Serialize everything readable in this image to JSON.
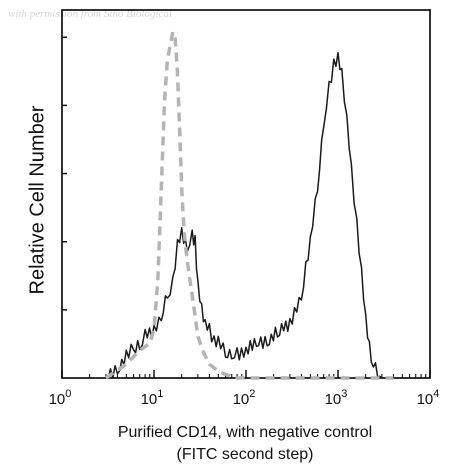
{
  "watermark": "with permission from Sino Biological",
  "chart_data": {
    "type": "line",
    "xscale": "log",
    "xlim": [
      1,
      10000
    ],
    "ylim": [
      0,
      100
    ],
    "x_ticks": [
      {
        "value": 1,
        "label": "10",
        "exp": "0"
      },
      {
        "value": 10,
        "label": "10",
        "exp": "1"
      },
      {
        "value": 100,
        "label": "10",
        "exp": "2"
      },
      {
        "value": 1000,
        "label": "10",
        "exp": "3"
      },
      {
        "value": 10000,
        "label": "10",
        "exp": "4"
      }
    ],
    "xlabel_line1": "Purified CD14, with negative control",
    "xlabel_line2": "(FITC second step)",
    "ylabel": "Relative Cell Number",
    "series": [
      {
        "style": "solid",
        "color": "#1a1a1a",
        "x": [
          3,
          4,
          5,
          6,
          7,
          8,
          10,
          12,
          14,
          16,
          18,
          20,
          23,
          26,
          28,
          30,
          33,
          36,
          40,
          45,
          50,
          60,
          70,
          80,
          100,
          130,
          170,
          220,
          300,
          400,
          500,
          600,
          700,
          800,
          900,
          1000,
          1100,
          1250,
          1400,
          1600,
          1800,
          2000,
          2300,
          2700,
          3000
        ],
        "y": [
          0,
          3,
          6,
          9,
          10,
          12,
          14,
          18,
          24,
          28,
          38,
          42,
          38,
          41,
          40,
          26,
          20,
          16,
          14,
          11,
          10,
          8,
          7,
          7,
          8,
          10,
          11,
          13,
          16,
          24,
          39,
          56,
          74,
          84,
          91,
          92,
          88,
          75,
          60,
          45,
          30,
          17,
          6,
          1,
          0
        ]
      },
      {
        "style": "dashed",
        "color": "#b4b4b4",
        "x": [
          3,
          5,
          7,
          9,
          10,
          11,
          12,
          13,
          14,
          15,
          16,
          17,
          18,
          19,
          20,
          21,
          22,
          24,
          26,
          28,
          30,
          35,
          40,
          50,
          60,
          80,
          100,
          200,
          1000,
          3000,
          4000
        ],
        "y": [
          0,
          4,
          8,
          10,
          14,
          28,
          55,
          80,
          92,
          96,
          100,
          98,
          88,
          72,
          55,
          45,
          38,
          30,
          24,
          18,
          12,
          7,
          4,
          2,
          1,
          0,
          0,
          0,
          0,
          0,
          0
        ]
      }
    ]
  }
}
